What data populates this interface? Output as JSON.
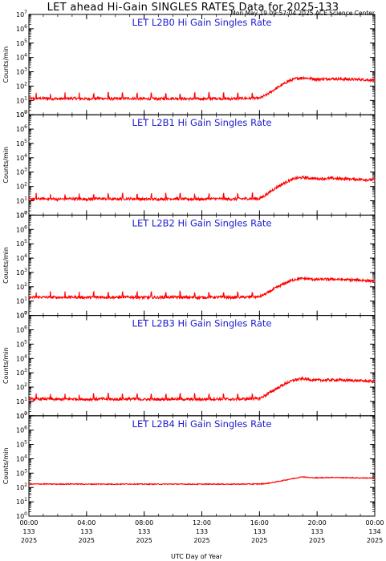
{
  "page": {
    "title": "LET ahead Hi-Gain SINGLES RATES Data for 2025-133",
    "timestamp": "Mon May 19 09:57:04 2025 ACE Science Center"
  },
  "chart_data": {
    "type": "line",
    "xlabel": "UTC Day of Year",
    "xlim": [
      0,
      24
    ],
    "x_unit": "hours of day 2025-133",
    "x_ticks": [
      {
        "hours": 0,
        "time": "00:00",
        "doy": "133",
        "year": "2025"
      },
      {
        "hours": 4,
        "time": "04:00",
        "doy": "133",
        "year": "2025"
      },
      {
        "hours": 8,
        "time": "08:00",
        "doy": "133",
        "year": "2025"
      },
      {
        "hours": 12,
        "time": "12:00",
        "doy": "133",
        "year": "2025"
      },
      {
        "hours": 16,
        "time": "16:00",
        "doy": "133",
        "year": "2025"
      },
      {
        "hours": 20,
        "time": "20:00",
        "doy": "133",
        "year": "2025"
      },
      {
        "hours": 24,
        "time": "00:00",
        "doy": "134",
        "year": "2025"
      }
    ],
    "ylabel": "Counts/min",
    "y_scale": "log",
    "ylim": [
      1,
      10000000
    ],
    "y_tick_labels": [
      "10^0",
      "10^1",
      "10^2",
      "10^3",
      "10^4",
      "10^5",
      "10^6",
      "10^7"
    ],
    "line_color": "#ff0000",
    "panels": [
      {
        "title": "LET L2B0 Hi Gain Singles Rate",
        "series": [
          {
            "x": [
              0,
              1,
              2,
              3,
              4,
              5,
              6,
              7,
              8,
              9,
              10,
              11,
              12,
              13,
              14,
              15,
              16,
              16.5,
              17,
              17.5,
              18,
              18.5,
              19,
              19.5,
              20,
              21,
              22,
              23,
              24
            ],
            "values": [
              13,
              14,
              13,
              14,
              13,
              14,
              13,
              14,
              13,
              13,
              14,
              13,
              13,
              14,
              13,
              14,
              14,
              25,
              55,
              110,
              220,
              330,
              390,
              340,
              300,
              330,
              300,
              290,
              260
            ]
          }
        ]
      },
      {
        "title": "LET L2B1 Hi Gain Singles Rate",
        "series": [
          {
            "x": [
              0,
              1,
              2,
              3,
              4,
              5,
              6,
              7,
              8,
              9,
              10,
              11,
              12,
              13,
              14,
              15,
              16,
              16.5,
              17,
              17.5,
              18,
              18.5,
              19,
              19.5,
              20,
              21,
              22,
              23,
              24
            ],
            "values": [
              13,
              14,
              13,
              14,
              13,
              14,
              13,
              14,
              13,
              13,
              14,
              13,
              13,
              14,
              13,
              14,
              14,
              28,
              65,
              130,
              240,
              370,
              420,
              380,
              340,
              370,
              340,
              310,
              280
            ]
          }
        ]
      },
      {
        "title": "LET L2B2 Hi Gain Singles Rate",
        "series": [
          {
            "x": [
              0,
              1,
              2,
              3,
              4,
              5,
              6,
              7,
              8,
              9,
              10,
              11,
              12,
              13,
              14,
              15,
              16,
              16.5,
              17,
              17.5,
              18,
              18.5,
              19,
              19.5,
              20,
              21,
              22,
              23,
              24
            ],
            "values": [
              18,
              19,
              18,
              19,
              18,
              19,
              18,
              19,
              18,
              18,
              19,
              18,
              18,
              19,
              18,
              19,
              20,
              35,
              70,
              130,
              230,
              340,
              380,
              350,
              320,
              340,
              310,
              290,
              250
            ]
          }
        ]
      },
      {
        "title": "LET L2B3 Hi Gain Singles Rate",
        "series": [
          {
            "x": [
              0,
              1,
              2,
              3,
              4,
              5,
              6,
              7,
              8,
              9,
              10,
              11,
              12,
              13,
              14,
              15,
              16,
              16.5,
              17,
              17.5,
              18,
              18.5,
              19,
              19.5,
              20,
              21,
              22,
              23,
              24
            ],
            "values": [
              14,
              15,
              14,
              15,
              14,
              15,
              14,
              15,
              14,
              14,
              15,
              14,
              14,
              15,
              14,
              15,
              16,
              30,
              62,
              120,
              220,
              330,
              380,
              340,
              300,
              320,
              300,
              280,
              250
            ]
          }
        ]
      },
      {
        "title": "LET L2B4 Hi Gain Singles Rate",
        "series": [
          {
            "x": [
              0,
              1,
              2,
              3,
              4,
              5,
              6,
              7,
              8,
              9,
              10,
              11,
              12,
              13,
              14,
              15,
              16,
              16.5,
              17,
              17.5,
              18,
              18.5,
              19,
              19.5,
              20,
              21,
              22,
              23,
              24
            ],
            "values": [
              170,
              175,
              170,
              175,
              170,
              172,
              170,
              175,
              170,
              170,
              172,
              170,
              170,
              172,
              170,
              172,
              175,
              190,
              230,
              290,
              360,
              450,
              560,
              480,
              470,
              500,
              480,
              460,
              450
            ]
          }
        ]
      }
    ]
  }
}
